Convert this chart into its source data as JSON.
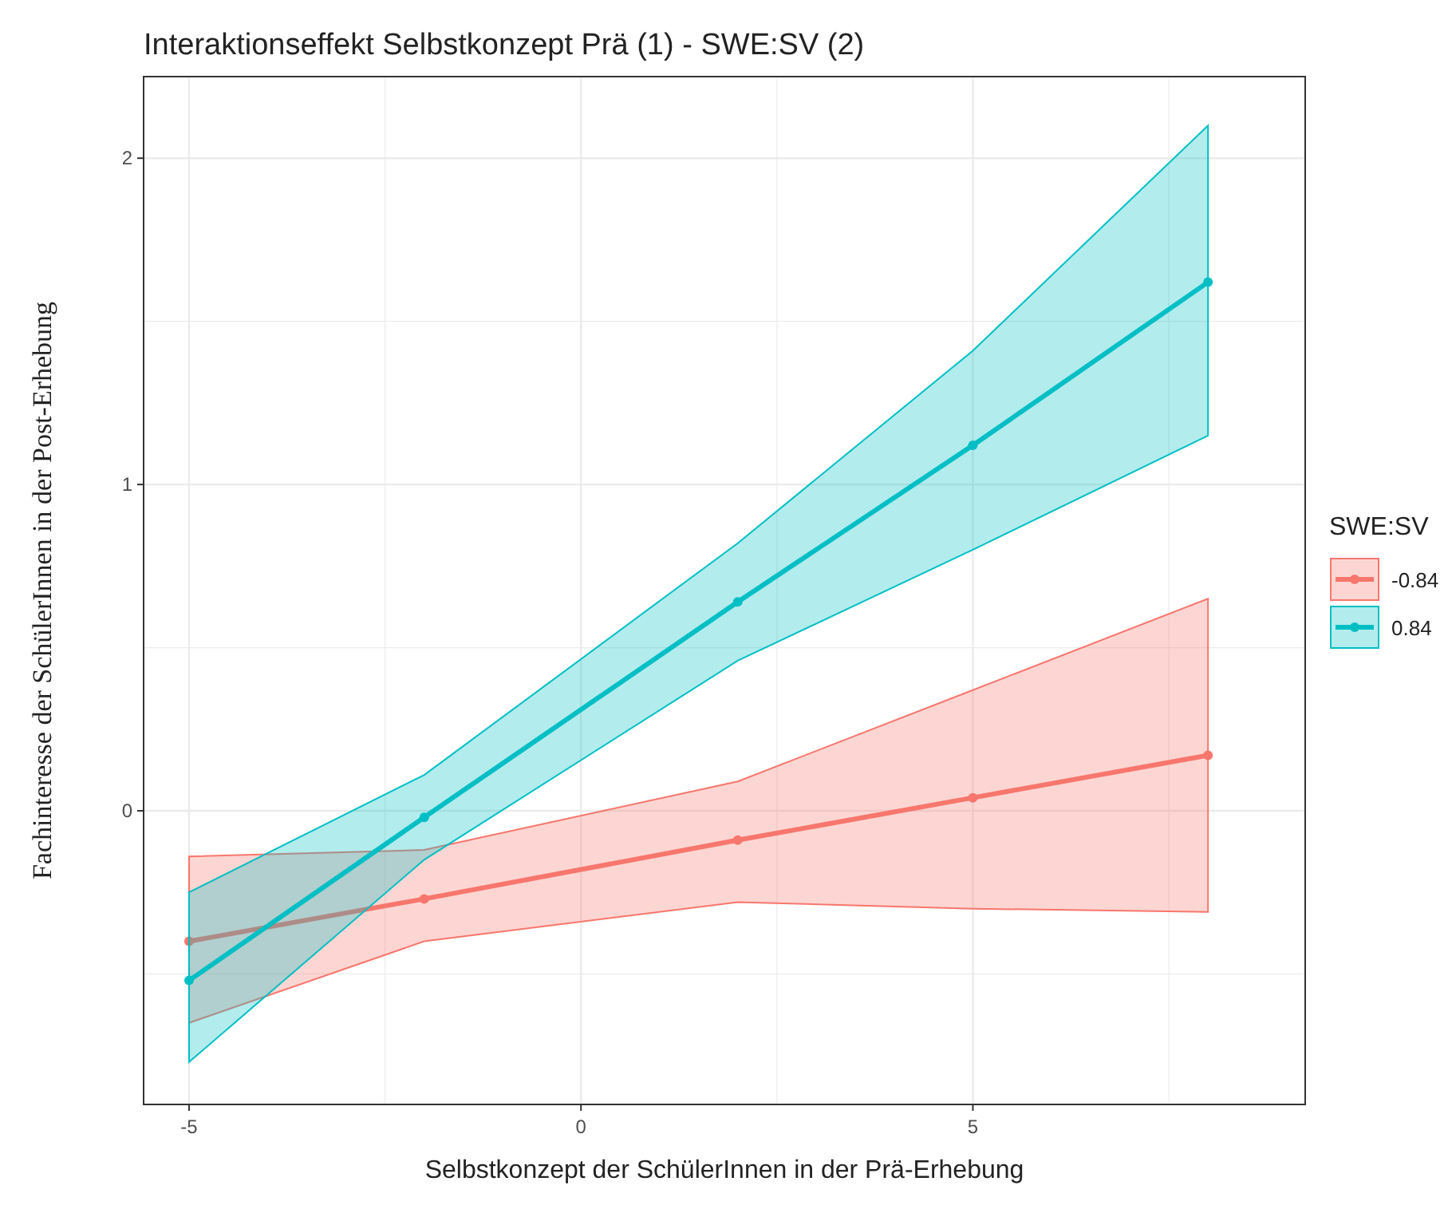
{
  "chart_data": {
    "type": "line",
    "title": "Interaktionseffekt Selbstkonzept Prä (1) - SWE:SV (2)",
    "xlabel": "Selbstkonzept der SchülerInnen in der Prä-Erhebung",
    "ylabel": "Fachinteresse der SchülerInnen in der Post-Erhebung",
    "legend_title": "SWE:SV",
    "legend": "right",
    "grid": true,
    "marker": "circle",
    "line_style": "solid",
    "x": [
      -5,
      -2,
      2,
      5,
      8
    ],
    "xlim": [
      -5.58,
      9.24
    ],
    "ylim": [
      -0.9,
      2.25
    ],
    "xticks": [
      -5,
      {
        "value": -2.5,
        "label": null
      },
      0,
      {
        "value": 2.5,
        "label": null
      },
      5,
      {
        "value": 7.5,
        "label": null
      }
    ],
    "yticks": [
      {
        "value": -0.5,
        "label": null
      },
      0,
      {
        "value": 0.5,
        "label": null
      },
      1,
      {
        "value": 1.5,
        "label": null
      },
      2
    ],
    "series": [
      {
        "name": "-0.84",
        "color": "#f8766d",
        "values": [
          -0.4,
          -0.27,
          -0.09,
          0.04,
          0.17
        ],
        "lower": [
          -0.65,
          -0.4,
          -0.28,
          -0.3,
          -0.31
        ],
        "upper": [
          -0.14,
          -0.12,
          0.09,
          0.37,
          0.65
        ]
      },
      {
        "name": "0.84",
        "color": "#00bfc4",
        "values": [
          -0.52,
          -0.02,
          0.64,
          1.12,
          1.62
        ],
        "lower": [
          -0.77,
          -0.15,
          0.46,
          0.8,
          1.15
        ],
        "upper": [
          -0.25,
          0.11,
          0.82,
          1.41,
          2.1
        ]
      }
    ]
  }
}
